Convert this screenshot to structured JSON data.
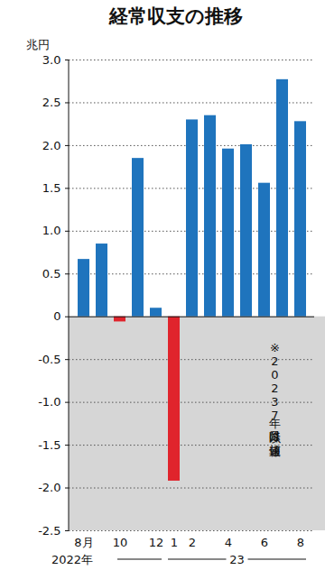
{
  "chart_data": {
    "type": "bar",
    "title": "経常収支の推移",
    "y_label": "兆円",
    "categories": [
      "8月",
      null,
      "10",
      null,
      "12",
      "1",
      "2",
      null,
      "4",
      null,
      "6",
      null,
      "8"
    ],
    "values": [
      0.67,
      0.85,
      -0.06,
      1.85,
      0.1,
      -1.92,
      2.3,
      2.35,
      1.96,
      2.01,
      1.56,
      2.77,
      2.28
    ],
    "colors": [
      "#1f74bd",
      "#1f74bd",
      "#e0242c",
      "#1f74bd",
      "#1f74bd",
      "#e0242c",
      "#1f74bd",
      "#1f74bd",
      "#1f74bd",
      "#1f74bd",
      "#1f74bd",
      "#1f74bd",
      "#1f74bd"
    ],
    "ylim": [
      -2.5,
      3.0
    ],
    "yticks": [
      -2.5,
      {
        "value": -2.0,
        "label": "-2.0"
      },
      -1.5,
      {
        "value": -1.0,
        "label": "-1.0"
      },
      -0.5,
      0,
      0.5,
      {
        "value": 1.0,
        "label": "1.0"
      },
      1.5,
      {
        "value": 2.0,
        "label": "2.0"
      },
      2.5,
      {
        "value": 3.0,
        "label": "3.0"
      }
    ],
    "grid": true,
    "annotations": [
      "2022年",
      "23",
      "※2023年7月以降は速報値"
    ]
  }
}
